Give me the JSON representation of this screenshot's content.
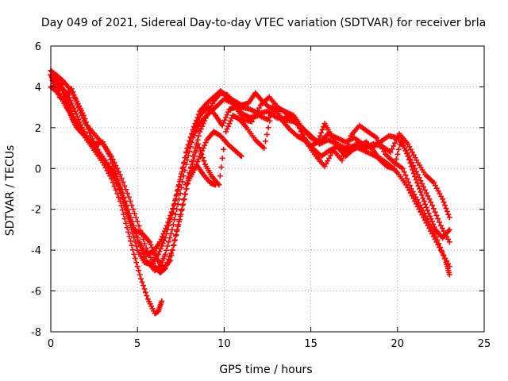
{
  "chart_data": {
    "type": "scatter",
    "title": "Day 049 of 2021, Sidereal Day-to-day VTEC variation (SDTVAR) for receiver brla",
    "xlabel": "GPS time / hours",
    "ylabel": "SDTVAR / TECUs",
    "xlim": [
      0,
      25
    ],
    "ylim": [
      -8,
      6
    ],
    "xticks": [
      0,
      5,
      10,
      15,
      20,
      25
    ],
    "yticks": [
      -8,
      -6,
      -4,
      -2,
      0,
      2,
      4,
      6
    ],
    "grid": true,
    "marker": "+",
    "color": "#ff0000",
    "series": [
      {
        "name": "s1",
        "x": [
          0.0,
          0.2,
          0.5,
          0.9,
          1.2,
          1.5,
          2.0,
          2.5,
          3.0,
          3.5,
          4.0,
          4.4,
          4.8,
          5.2,
          5.6,
          6.0,
          6.2,
          6.4
        ],
        "y": [
          4.6,
          4.2,
          3.6,
          3.0,
          2.6,
          2.2,
          1.5,
          0.9,
          0.3,
          -0.5,
          -1.6,
          -2.9,
          -4.2,
          -5.4,
          -6.4,
          -7.1,
          -7.0,
          -6.5
        ]
      },
      {
        "name": "s2",
        "x": [
          0.0,
          0.3,
          0.6,
          0.9,
          1.2,
          1.5,
          2.0,
          2.5,
          3.0,
          3.5,
          4.0,
          4.5,
          5.0,
          5.5,
          6.0,
          6.3,
          6.6,
          7.0,
          7.4,
          7.8,
          8.2,
          8.6,
          9.0,
          9.5,
          10.0,
          10.5,
          11.0,
          11.5,
          12.0,
          12.5,
          13.0,
          13.5,
          14.0,
          14.5,
          15.0,
          15.5,
          16.0,
          16.5,
          17.0,
          17.5,
          18.0,
          18.5,
          19.0,
          19.5,
          20.0,
          20.5,
          21.0,
          21.5,
          22.0,
          22.5,
          23.0
        ],
        "y": [
          4.0,
          3.8,
          4.1,
          3.2,
          2.5,
          2.0,
          1.6,
          1.0,
          0.5,
          -0.2,
          -1.0,
          -2.3,
          -3.5,
          -4.5,
          -5.0,
          -4.8,
          -4.2,
          -3.0,
          -1.5,
          0.2,
          1.5,
          2.2,
          2.6,
          3.0,
          3.4,
          3.2,
          3.0,
          2.9,
          2.7,
          2.8,
          2.5,
          2.4,
          2.3,
          2.0,
          1.6,
          1.2,
          1.4,
          1.2,
          1.0,
          1.1,
          0.9,
          0.7,
          0.5,
          0.2,
          -0.2,
          -0.8,
          -1.6,
          -2.4,
          -3.2,
          -4.0,
          -4.8
        ]
      },
      {
        "name": "s3",
        "x": [
          0.0,
          0.4,
          0.8,
          1.2,
          1.6,
          2.0,
          2.5,
          3.0,
          3.5,
          4.0,
          4.5,
          5.0,
          5.5,
          6.0,
          6.3,
          6.6,
          7.0,
          7.4,
          7.8,
          8.2,
          8.6,
          9.0,
          9.4,
          9.8,
          10.2,
          10.6,
          11.0,
          11.5,
          12.0,
          12.5,
          13.0,
          13.5,
          14.0,
          14.5,
          15.0,
          15.5,
          16.0,
          16.5,
          17.0,
          17.5,
          18.0,
          18.5,
          19.0,
          19.5,
          20.0,
          20.5,
          21.0,
          21.5,
          22.0,
          22.5,
          23.0
        ],
        "y": [
          4.8,
          4.5,
          3.5,
          3.9,
          3.0,
          2.2,
          1.7,
          1.2,
          0.6,
          -0.3,
          -1.4,
          -2.6,
          -3.9,
          -4.8,
          -5.1,
          -4.9,
          -4.0,
          -2.6,
          -1.0,
          0.6,
          1.8,
          2.6,
          3.3,
          3.7,
          3.6,
          3.1,
          2.7,
          2.5,
          2.6,
          2.4,
          3.0,
          2.8,
          2.6,
          2.0,
          1.5,
          1.3,
          1.7,
          1.5,
          1.3,
          1.5,
          1.2,
          1.0,
          1.3,
          1.6,
          1.5,
          0.9,
          0.0,
          -0.9,
          -1.8,
          -2.8,
          -3.6
        ]
      },
      {
        "name": "s4",
        "x": [
          0.2,
          0.6,
          1.0,
          1.4,
          1.8,
          2.2,
          2.6,
          3.0,
          3.4,
          3.8,
          4.2,
          4.6,
          5.0,
          5.4,
          5.8,
          6.2,
          6.6,
          7.0,
          7.4,
          7.8,
          8.2,
          8.6,
          9.0,
          9.4,
          9.8,
          10.2,
          10.6,
          11.0,
          11.4,
          11.8,
          12.2,
          12.6,
          13.0,
          13.4,
          13.8,
          14.2,
          14.6,
          15.0,
          15.4,
          15.8,
          16.2,
          16.6,
          17.0,
          17.4,
          17.8,
          18.2,
          18.6,
          19.0,
          19.4,
          19.8,
          20.2,
          20.6,
          21.0,
          21.4,
          21.8,
          22.2,
          22.6,
          23.0
        ],
        "y": [
          4.4,
          4.0,
          3.6,
          2.8,
          2.0,
          1.4,
          1.2,
          1.3,
          0.6,
          -0.4,
          -1.5,
          -2.8,
          -4.0,
          -4.6,
          -4.7,
          -4.2,
          -3.4,
          -2.2,
          -0.8,
          0.8,
          1.9,
          2.8,
          3.2,
          3.5,
          3.8,
          3.5,
          3.3,
          3.1,
          3.2,
          3.7,
          3.3,
          3.0,
          2.9,
          2.3,
          1.9,
          1.6,
          1.4,
          1.1,
          1.3,
          2.2,
          1.6,
          1.0,
          0.6,
          0.9,
          1.1,
          1.3,
          0.9,
          0.4,
          0.1,
          0.0,
          1.4,
          0.6,
          -0.4,
          -1.3,
          -2.2,
          -3.0,
          -3.4,
          -3.0
        ]
      },
      {
        "name": "s5",
        "x": [
          0.1,
          0.5,
          1.0,
          1.3,
          1.7,
          2.1,
          2.6,
          3.1,
          3.6,
          4.1,
          4.6,
          5.1,
          5.5,
          5.9,
          6.3,
          6.7,
          7.1,
          7.5,
          7.9,
          8.3,
          8.7,
          9.1,
          9.5,
          9.9,
          10.3,
          10.7,
          11.1,
          11.6,
          12.1,
          12.6,
          13.1,
          13.6,
          14.1,
          14.6,
          15.1,
          15.6,
          16.1,
          16.6,
          17.1,
          17.6,
          18.1,
          18.6,
          19.1,
          19.6,
          20.1,
          20.6,
          21.1,
          21.6,
          22.1,
          22.6,
          23.0
        ],
        "y": [
          4.3,
          3.5,
          3.3,
          2.4,
          1.8,
          1.5,
          1.0,
          0.4,
          -0.2,
          -1.2,
          -2.4,
          -3.6,
          -4.2,
          -4.1,
          -3.6,
          -2.8,
          -1.8,
          -0.4,
          1.0,
          2.0,
          2.7,
          3.0,
          2.6,
          2.1,
          2.9,
          3.0,
          2.4,
          2.3,
          3.1,
          3.5,
          3.0,
          2.7,
          2.5,
          1.5,
          1.0,
          0.6,
          0.9,
          1.1,
          0.8,
          1.2,
          1.0,
          1.2,
          1.1,
          0.8,
          1.7,
          1.2,
          0.4,
          -0.3,
          -0.7,
          -1.5,
          -2.4
        ]
      },
      {
        "name": "s6",
        "x": [
          0.3,
          0.7,
          1.1,
          1.5,
          1.9,
          2.3,
          2.8,
          3.3,
          3.8,
          4.3,
          4.8,
          5.3,
          5.7,
          6.1,
          6.5,
          6.9,
          7.3,
          7.7,
          8.1,
          8.5,
          8.9,
          9.3,
          9.7,
          10.1,
          10.5,
          10.9,
          11.3,
          11.8,
          12.3,
          12.8,
          13.3,
          13.8,
          14.3,
          14.8,
          15.3,
          15.8,
          16.3,
          16.8,
          17.3,
          17.8,
          18.3,
          18.8,
          19.3,
          19.8,
          20.3,
          20.8,
          21.3,
          21.8,
          22.3,
          22.8,
          23.0
        ],
        "y": [
          4.6,
          4.3,
          3.9,
          3.3,
          2.6,
          1.6,
          0.8,
          0.2,
          -0.6,
          -1.8,
          -3.0,
          -3.2,
          -3.6,
          -4.4,
          -4.9,
          -4.5,
          -3.0,
          -1.5,
          0.0,
          1.2,
          0.2,
          -0.4,
          -0.8,
          1.8,
          2.6,
          2.4,
          2.0,
          1.4,
          1.0,
          3.0,
          2.4,
          2.6,
          2.1,
          1.2,
          0.6,
          0.1,
          0.9,
          0.4,
          1.6,
          2.1,
          1.8,
          1.5,
          0.7,
          0.3,
          0.0,
          -1.0,
          -1.8,
          -2.6,
          -3.5,
          -4.6,
          -5.2
        ]
      },
      {
        "name": "s7",
        "x": [
          7.8,
          8.2,
          8.6,
          9.0,
          9.4,
          9.8,
          10.2,
          10.6,
          11.0
        ],
        "y": [
          -0.8,
          -0.2,
          0.6,
          1.4,
          1.8,
          1.6,
          1.2,
          0.9,
          0.6
        ]
      },
      {
        "name": "s8",
        "x": [
          8.0,
          8.4,
          8.8,
          9.2,
          9.5
        ],
        "y": [
          -0.4,
          0.2,
          -0.3,
          -0.7,
          -0.8
        ]
      }
    ]
  }
}
